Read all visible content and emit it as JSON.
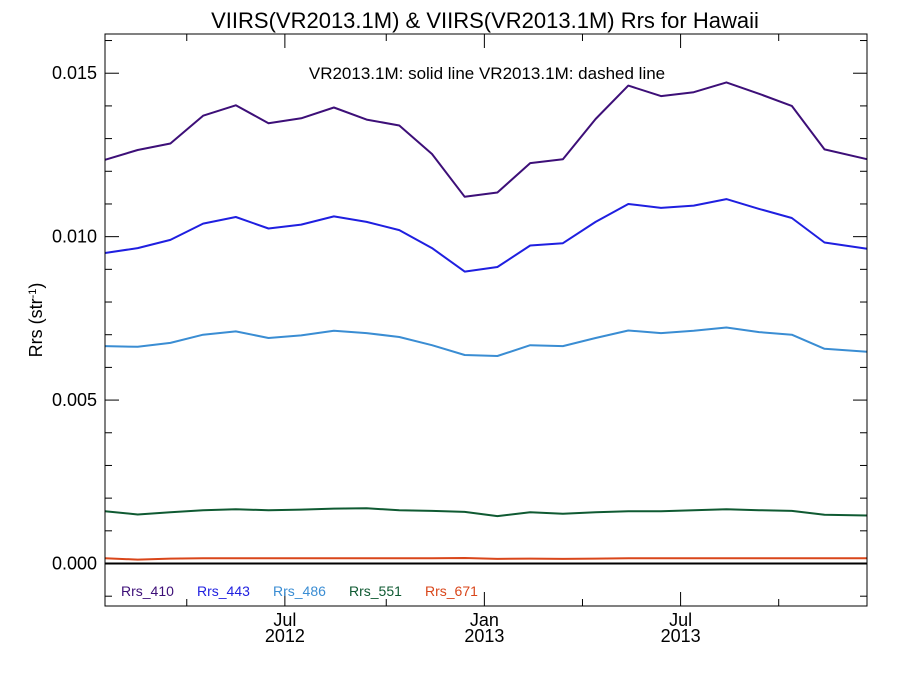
{
  "chart_data": {
    "type": "line",
    "title": "VIIRS(VR2013.1M) & VIIRS(VR2013.1M)  Rrs for Hawaii",
    "ylabel_main": "Rrs (str",
    "ylabel_sup": "-1",
    "ylabel_close": ")",
    "annotation": "VR2013.1M: solid line   VR2013.1M: dashed line",
    "ylim": [
      -0.0013,
      0.0162
    ],
    "xlim": [
      0,
      23.3
    ],
    "yticks": [
      {
        "value": 0.0,
        "label": "0.000"
      },
      {
        "value": 0.005,
        "label": "0.005"
      },
      {
        "value": 0.01,
        "label": "0.010"
      },
      {
        "value": 0.015,
        "label": "0.015"
      }
    ],
    "yminor_step": 0.001,
    "xticks": [
      {
        "value": 5.5,
        "label": "Jul",
        "label2": "2012"
      },
      {
        "value": 11.6,
        "label": "Jan",
        "label2": "2013"
      },
      {
        "value": 17.6,
        "label": "Jul",
        "label2": "2013"
      }
    ],
    "xminor": [
      2.5,
      8.6,
      14.6,
      20.6
    ],
    "zero_line": 0.0,
    "x": [
      0,
      1,
      2,
      3,
      4,
      5,
      6,
      7,
      8,
      9,
      10,
      11,
      12,
      13,
      14,
      15,
      16,
      17,
      18,
      19,
      20,
      21,
      22,
      23.3
    ],
    "series": [
      {
        "name": "Rrs_410",
        "color": "#3d0f78",
        "values": [
          0.01235,
          0.01265,
          0.01285,
          0.0137,
          0.01402,
          0.01347,
          0.01362,
          0.01395,
          0.01358,
          0.0134,
          0.01253,
          0.01122,
          0.01135,
          0.01225,
          0.01237,
          0.0136,
          0.01462,
          0.0143,
          0.01442,
          0.01472,
          0.01437,
          0.014,
          0.01267,
          0.01237
        ]
      },
      {
        "name": "Rrs_443",
        "color": "#1f1fe0",
        "values": [
          0.0095,
          0.00965,
          0.0099,
          0.0104,
          0.0106,
          0.01025,
          0.01037,
          0.01062,
          0.01045,
          0.0102,
          0.00965,
          0.00893,
          0.00907,
          0.00973,
          0.0098,
          0.01045,
          0.011,
          0.01088,
          0.01095,
          0.01115,
          0.01085,
          0.01057,
          0.00982,
          0.00963
        ]
      },
      {
        "name": "Rrs_486",
        "color": "#3a8dd3",
        "values": [
          0.00665,
          0.00663,
          0.00675,
          0.007,
          0.0071,
          0.0069,
          0.00698,
          0.00712,
          0.00705,
          0.00693,
          0.00668,
          0.00638,
          0.00635,
          0.00668,
          0.00665,
          0.0069,
          0.00713,
          0.00705,
          0.00712,
          0.00722,
          0.00708,
          0.007,
          0.00657,
          0.00648
        ]
      },
      {
        "name": "Rrs_551",
        "color": "#0f5a32",
        "values": [
          0.0016,
          0.0015,
          0.00157,
          0.00163,
          0.00166,
          0.00163,
          0.00165,
          0.00168,
          0.00169,
          0.00163,
          0.00161,
          0.00158,
          0.00145,
          0.00157,
          0.00152,
          0.00157,
          0.0016,
          0.0016,
          0.00163,
          0.00166,
          0.00163,
          0.00161,
          0.00149,
          0.00147
        ]
      },
      {
        "name": "Rrs_671",
        "color": "#d9461a",
        "values": [
          0.00016,
          0.00012,
          0.00015,
          0.00016,
          0.00016,
          0.00016,
          0.00016,
          0.00016,
          0.00016,
          0.00016,
          0.00016,
          0.00017,
          0.00014,
          0.00015,
          0.00014,
          0.00015,
          0.00016,
          0.00016,
          0.00016,
          0.00016,
          0.00016,
          0.00016,
          0.00016,
          0.00016
        ]
      }
    ]
  }
}
